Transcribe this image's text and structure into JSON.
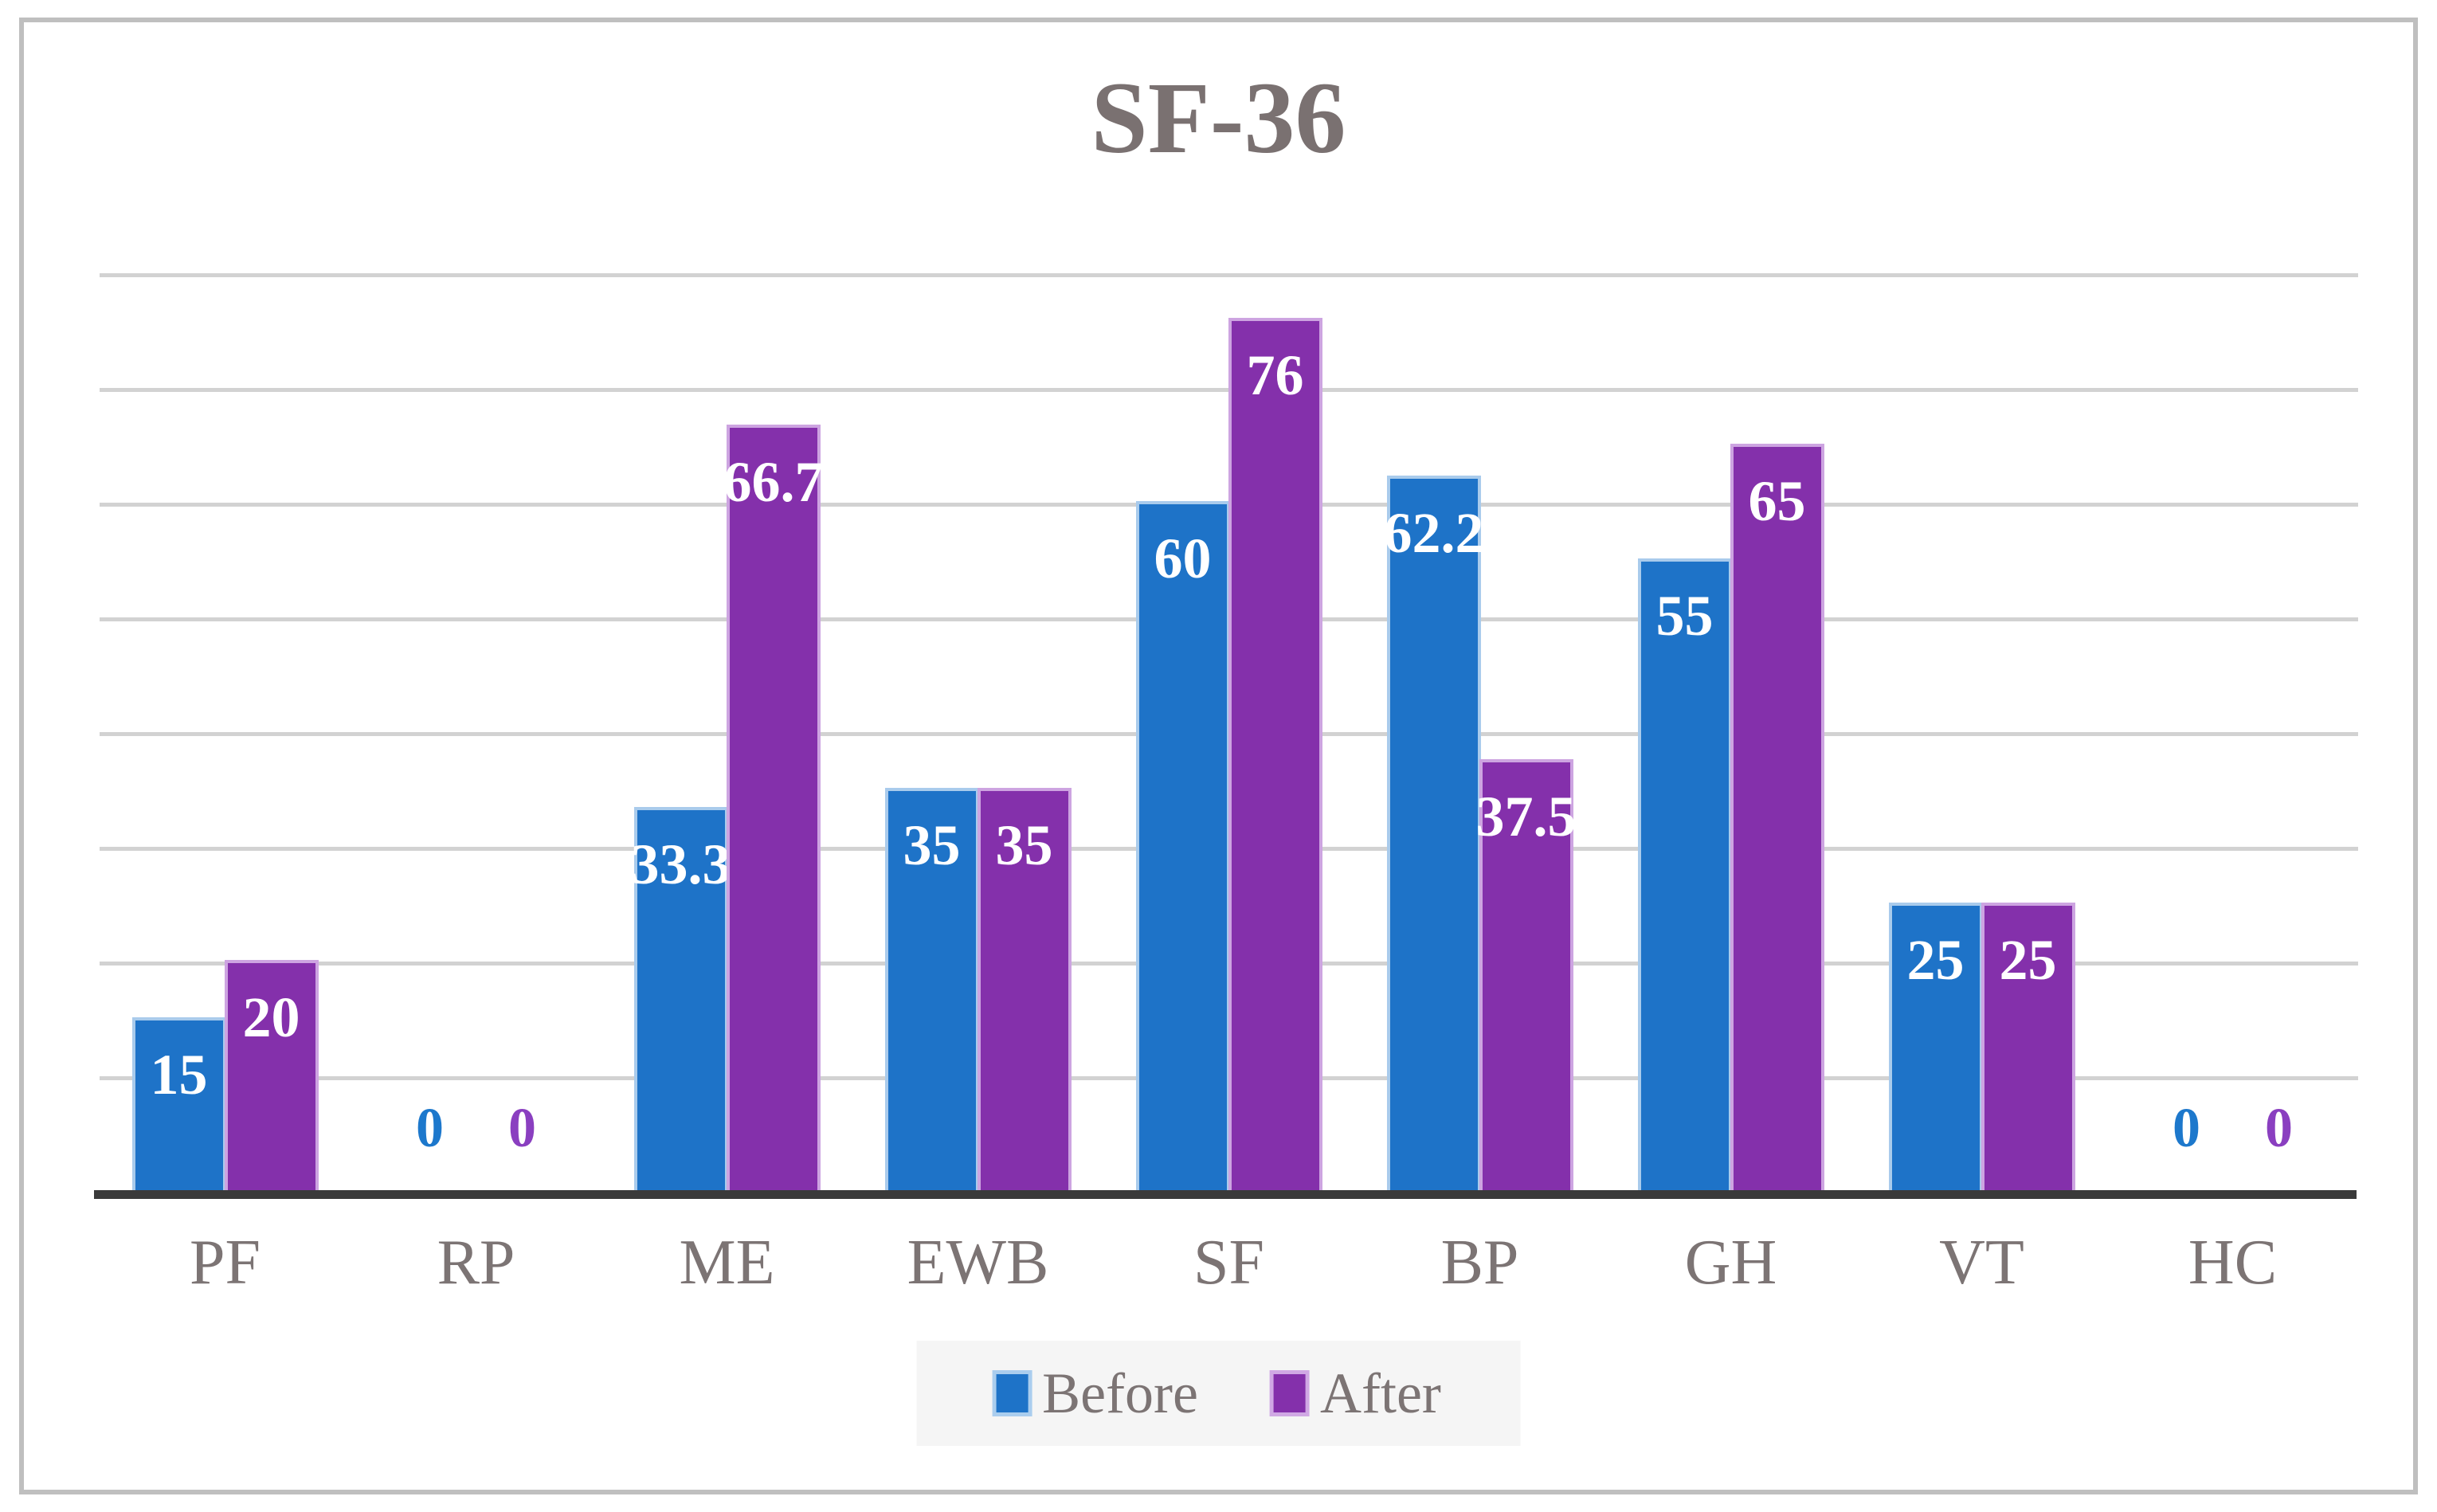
{
  "chart_data": {
    "type": "bar",
    "title": "SF-36",
    "categories": [
      "PF",
      "RP",
      "ME",
      "EWB",
      "SF",
      "BP",
      "GH",
      "VT",
      "HC"
    ],
    "series": [
      {
        "name": "Before",
        "color": "#1e73c8",
        "zero_label_color": "#1d78cc",
        "values": [
          15,
          0,
          33.3,
          35,
          60,
          62.2,
          55,
          25,
          0
        ],
        "labels": [
          "15",
          "0",
          "33.3",
          "35",
          "60",
          "62.2",
          "55",
          "25",
          "0"
        ]
      },
      {
        "name": "After",
        "color": "#8430ab",
        "zero_label_color": "#8a3fc0",
        "values": [
          20,
          0,
          66.7,
          35,
          76,
          37.5,
          65,
          25,
          0
        ],
        "labels": [
          "20",
          "0",
          "66.7",
          "35",
          "76",
          "37.5",
          "65",
          "25",
          "0"
        ]
      }
    ],
    "ylim": [
      0,
      85
    ],
    "gridline_interval": 10,
    "gridline_count": 8,
    "grid": true,
    "y_axis_labels_visible": false,
    "data_labels": "inside-end, white; zero values shown above axis in series color",
    "legend_position": "bottom",
    "colors": {
      "title_text": "#7a7171",
      "category_text": "#7c7474",
      "gridline": "#d2d2d2",
      "axis_line": "#3a3a3a",
      "legend_background": "#f5f5f5",
      "frame_border": "#bfbfbf"
    }
  }
}
